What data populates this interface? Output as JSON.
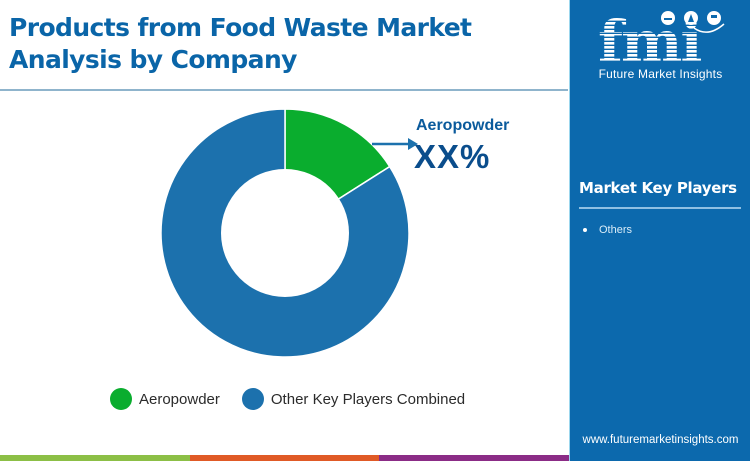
{
  "header": {
    "title_line1": "Products from Food Waste Market",
    "title_line2": "Analysis by Company"
  },
  "callout": {
    "label": "Aeropowder",
    "value": "XX%"
  },
  "legend": {
    "items": [
      {
        "label": "Aeropowder",
        "color": "#0aad2e"
      },
      {
        "label": "Other Key Players Combined",
        "color": "#1c71ad"
      }
    ]
  },
  "sidebar": {
    "logo_text": "fmi",
    "logo_subtitle": "Future Market Insights",
    "heading": "Market Key Players",
    "items": [
      "Others"
    ],
    "url": "www.futuremarketinsights.com"
  },
  "colors": {
    "title": "#0a65a8",
    "sidebar_bg": "#0c69ad",
    "bar_green": "#8cbf46",
    "bar_orange": "#e05a26",
    "bar_purple": "#8b2c86"
  },
  "chart_data": {
    "type": "pie",
    "subtype": "donut",
    "title": "Products from Food Waste Market Analysis by Company",
    "categories": [
      "Aeropowder",
      "Other Key Players Combined"
    ],
    "values": [
      16,
      84
    ],
    "value_labels": [
      "XX%",
      ""
    ],
    "colors": [
      "#0aad2e",
      "#1c71ad"
    ],
    "start_angle_deg": 0,
    "direction": "clockwise",
    "legend_position": "bottom",
    "annotations": [
      {
        "target": "Aeropowder",
        "text": "Aeropowder XX%"
      }
    ]
  }
}
